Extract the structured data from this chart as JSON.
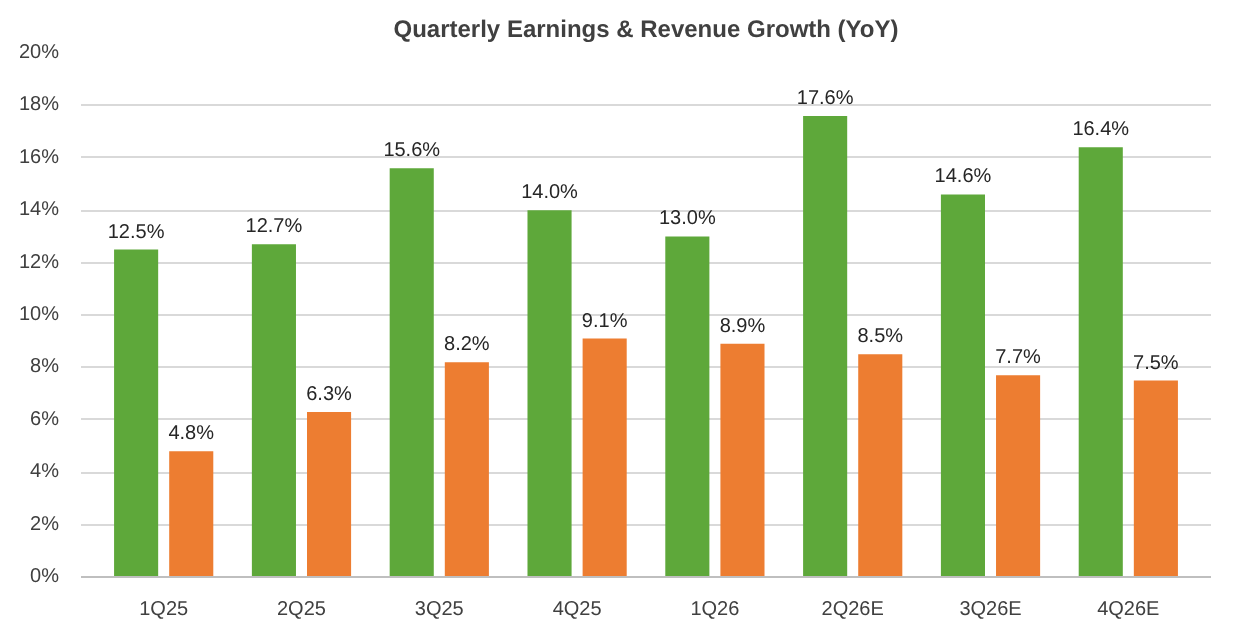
{
  "chart_data": {
    "type": "bar",
    "title": "Quarterly Earnings & Revenue Growth (YoY)",
    "categories": [
      "1Q25",
      "2Q25",
      "3Q25",
      "4Q25",
      "1Q26",
      "2Q26E",
      "3Q26E",
      "4Q26E"
    ],
    "series": [
      {
        "color": "#5ea83a",
        "values": [
          12.5,
          12.7,
          15.6,
          14.0,
          13.0,
          17.6,
          14.6,
          16.4
        ],
        "value_labels": [
          "12.5%",
          "12.7%",
          "15.6%",
          "14.0%",
          "13.0%",
          "17.6%",
          "14.6%",
          "16.4%"
        ]
      },
      {
        "color": "#ed7d31",
        "values": [
          4.8,
          6.3,
          8.2,
          9.1,
          8.9,
          8.5,
          7.7,
          7.5
        ],
        "value_labels": [
          "4.8%",
          "6.3%",
          "8.2%",
          "9.1%",
          "8.9%",
          "8.5%",
          "7.7%",
          "7.5%"
        ]
      }
    ],
    "ylim": [
      0,
      20
    ],
    "yticks": [
      {
        "value": 0,
        "label": "0%"
      },
      {
        "value": 2,
        "label": "2%"
      },
      {
        "value": 4,
        "label": "4%"
      },
      {
        "value": 6,
        "label": "6%"
      },
      {
        "value": 8,
        "label": "8%"
      },
      {
        "value": 10,
        "label": "10%"
      },
      {
        "value": 12,
        "label": "12%"
      },
      {
        "value": 14,
        "label": "14%"
      },
      {
        "value": 16,
        "label": "16%"
      },
      {
        "value": 18,
        "label": "18%"
      },
      {
        "value": 20,
        "label": "20%"
      }
    ],
    "grid": "y"
  }
}
